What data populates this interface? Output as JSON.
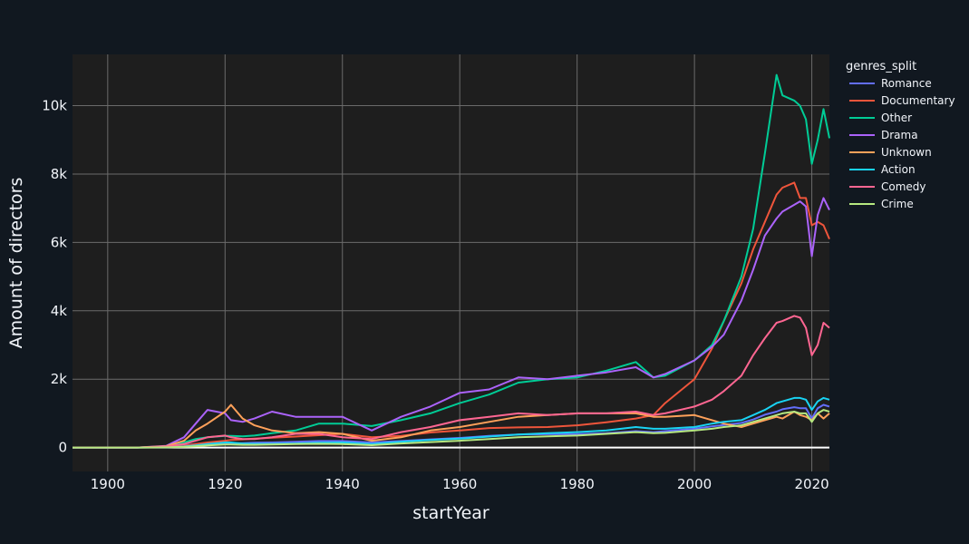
{
  "chart_data": {
    "type": "line",
    "xlabel": "startYear",
    "ylabel": "Amount of directors",
    "legend_title": "genres_split",
    "legend_position": "top-right, outside plot",
    "grid": true,
    "xlim": [
      1894,
      2023
    ],
    "ylim": [
      -700,
      11500
    ],
    "x_ticks": [
      1900,
      1920,
      1940,
      1960,
      1980,
      2000,
      2020
    ],
    "x_tick_labels": [
      "1900",
      "1920",
      "1940",
      "1960",
      "1980",
      "2000",
      "2020"
    ],
    "y_ticks": [
      0,
      2000,
      4000,
      6000,
      8000,
      10000
    ],
    "y_tick_labels": [
      "0",
      "2k",
      "4k",
      "6k",
      "8k",
      "10k"
    ],
    "x": [
      1894,
      1900,
      1905,
      1910,
      1913,
      1915,
      1917,
      1920,
      1921,
      1923,
      1925,
      1928,
      1932,
      1936,
      1940,
      1945,
      1950,
      1955,
      1960,
      1965,
      1970,
      1975,
      1980,
      1985,
      1990,
      1993,
      1995,
      2000,
      2003,
      2005,
      2008,
      2010,
      2012,
      2014,
      2015,
      2017,
      2018,
      2019,
      2020,
      2021,
      2022,
      2023
    ],
    "series": [
      {
        "name": "Romance",
        "color": "#636efa",
        "values": [
          0,
          0,
          0,
          20,
          60,
          100,
          110,
          120,
          120,
          130,
          140,
          150,
          170,
          190,
          190,
          150,
          190,
          240,
          280,
          340,
          380,
          390,
          390,
          420,
          480,
          450,
          480,
          550,
          620,
          660,
          720,
          820,
          960,
          1050,
          1120,
          1180,
          1150,
          1150,
          850,
          1150,
          1250,
          1200
        ]
      },
      {
        "name": "Documentary",
        "color": "#ef553b",
        "values": [
          0,
          0,
          0,
          10,
          50,
          100,
          150,
          200,
          220,
          240,
          260,
          290,
          320,
          360,
          400,
          300,
          340,
          440,
          500,
          570,
          590,
          600,
          650,
          740,
          850,
          950,
          1300,
          2000,
          2900,
          3700,
          4800,
          5800,
          6600,
          7400,
          7600,
          7750,
          7300,
          7300,
          6500,
          6600,
          6500,
          6100
        ]
      },
      {
        "name": "Other",
        "color": "#00cc96",
        "values": [
          0,
          0,
          0,
          30,
          150,
          250,
          300,
          340,
          340,
          330,
          350,
          420,
          500,
          700,
          700,
          630,
          800,
          1000,
          1300,
          1550,
          1900,
          2000,
          2050,
          2250,
          2500,
          2050,
          2100,
          2550,
          3000,
          3700,
          5000,
          6400,
          8600,
          10900,
          10300,
          10150,
          10000,
          9600,
          8300,
          9000,
          9900,
          9050
        ]
      },
      {
        "name": "Drama",
        "color": "#ab63fa",
        "values": [
          0,
          0,
          0,
          50,
          300,
          700,
          1100,
          1000,
          800,
          750,
          850,
          1050,
          900,
          900,
          900,
          500,
          900,
          1200,
          1600,
          1700,
          2050,
          2000,
          2100,
          2200,
          2350,
          2050,
          2150,
          2550,
          2950,
          3300,
          4300,
          5200,
          6200,
          6700,
          6900,
          7100,
          7200,
          7050,
          5600,
          6800,
          7300,
          6950
        ]
      },
      {
        "name": "Unknown",
        "color": "#ffa15a",
        "values": [
          0,
          0,
          0,
          40,
          200,
          500,
          700,
          1050,
          1250,
          850,
          650,
          500,
          420,
          450,
          400,
          200,
          300,
          500,
          600,
          750,
          900,
          950,
          1000,
          1000,
          1000,
          900,
          900,
          950,
          800,
          700,
          600,
          700,
          800,
          900,
          850,
          1050,
          950,
          900,
          800,
          1000,
          850,
          1000
        ]
      },
      {
        "name": "Action",
        "color": "#19d3f3",
        "values": [
          0,
          0,
          0,
          5,
          30,
          60,
          100,
          150,
          150,
          120,
          110,
          110,
          120,
          140,
          150,
          100,
          170,
          220,
          260,
          320,
          380,
          420,
          450,
          500,
          600,
          550,
          550,
          600,
          700,
          750,
          800,
          950,
          1100,
          1300,
          1350,
          1450,
          1450,
          1400,
          1100,
          1350,
          1450,
          1400
        ]
      },
      {
        "name": "Comedy",
        "color": "#ff6692",
        "values": [
          0,
          0,
          0,
          30,
          100,
          200,
          300,
          350,
          300,
          250,
          250,
          300,
          400,
          400,
          300,
          250,
          450,
          600,
          800,
          900,
          1000,
          950,
          1000,
          1000,
          1050,
          950,
          1000,
          1200,
          1400,
          1650,
          2100,
          2700,
          3200,
          3650,
          3700,
          3850,
          3800,
          3500,
          2700,
          3000,
          3650,
          3500
        ]
      },
      {
        "name": "Crime",
        "color": "#b6e880",
        "values": [
          0,
          0,
          0,
          5,
          20,
          40,
          60,
          90,
          90,
          80,
          80,
          90,
          100,
          110,
          100,
          70,
          120,
          160,
          200,
          250,
          300,
          330,
          350,
          400,
          450,
          420,
          430,
          500,
          550,
          600,
          650,
          750,
          850,
          950,
          1000,
          1050,
          1000,
          1000,
          750,
          1000,
          1100,
          1050
        ]
      }
    ]
  }
}
